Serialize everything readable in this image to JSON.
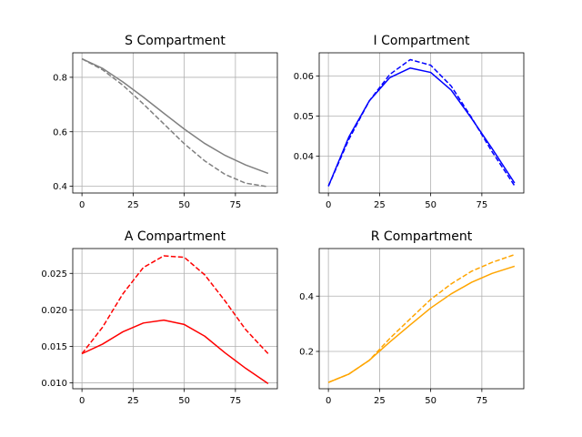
{
  "chart_data": [
    {
      "type": "line",
      "title": "S Compartment",
      "xlim": [
        -4.5,
        95.5
      ],
      "ylim": [
        0.375,
        0.89
      ],
      "xticks": [
        0,
        25,
        50,
        75
      ],
      "yticks": [
        0.4,
        0.6,
        0.8
      ],
      "ytick_labels": [
        "0.4",
        "0.6",
        "0.8"
      ],
      "grid": true,
      "series": [
        {
          "style": "solid",
          "color": "#808080",
          "x": [
            0,
            10,
            20,
            30,
            40,
            50,
            60,
            70,
            80,
            91
          ],
          "y": [
            0.868,
            0.833,
            0.783,
            0.727,
            0.668,
            0.61,
            0.557,
            0.513,
            0.478,
            0.447
          ]
        },
        {
          "style": "dashed",
          "color": "#808080",
          "x": [
            0,
            10,
            20,
            30,
            40,
            50,
            60,
            70,
            80,
            91
          ],
          "y": [
            0.868,
            0.828,
            0.771,
            0.702,
            0.629,
            0.556,
            0.493,
            0.443,
            0.411,
            0.398
          ]
        }
      ]
    },
    {
      "type": "line",
      "title": "I Compartment",
      "xlim": [
        -4.5,
        95.5
      ],
      "ylim": [
        0.0308,
        0.0658
      ],
      "xticks": [
        0,
        25,
        50,
        75
      ],
      "yticks": [
        0.04,
        0.05,
        0.06
      ],
      "ytick_labels": [
        "0.04",
        "0.05",
        "0.06"
      ],
      "grid": true,
      "series": [
        {
          "style": "solid",
          "color": "#0000ff",
          "x": [
            0,
            10,
            20,
            30,
            40,
            50,
            60,
            70,
            80,
            91
          ],
          "y": [
            0.0325,
            0.0448,
            0.0538,
            0.0596,
            0.062,
            0.0609,
            0.0565,
            0.0494,
            0.0419,
            0.0333
          ]
        },
        {
          "style": "dashed",
          "color": "#0000ff",
          "x": [
            0,
            10,
            20,
            30,
            40,
            50,
            60,
            70,
            80,
            91
          ],
          "y": [
            0.0325,
            0.0442,
            0.0538,
            0.0604,
            0.0641,
            0.0627,
            0.0575,
            0.0496,
            0.0411,
            0.0326
          ]
        }
      ]
    },
    {
      "type": "line",
      "title": "A Compartment",
      "xlim": [
        -4.5,
        95.5
      ],
      "ylim": [
        0.0092,
        0.0284
      ],
      "xticks": [
        0,
        25,
        50,
        75
      ],
      "yticks": [
        0.01,
        0.015,
        0.02,
        0.025
      ],
      "ytick_labels": [
        "0.010",
        "0.015",
        "0.020",
        "0.025"
      ],
      "grid": true,
      "series": [
        {
          "style": "solid",
          "color": "#ff0000",
          "x": [
            0,
            10,
            20,
            30,
            40,
            50,
            60,
            70,
            80,
            91
          ],
          "y": [
            0.014,
            0.0153,
            0.017,
            0.0182,
            0.0186,
            0.018,
            0.0164,
            0.0141,
            0.012,
            0.0099
          ]
        },
        {
          "style": "dashed",
          "color": "#ff0000",
          "x": [
            0,
            10,
            20,
            30,
            40,
            50,
            60,
            70,
            80,
            91
          ],
          "y": [
            0.014,
            0.0176,
            0.0222,
            0.0258,
            0.0274,
            0.0272,
            0.0248,
            0.0212,
            0.0173,
            0.014
          ]
        }
      ]
    },
    {
      "type": "line",
      "title": "R Compartment",
      "xlim": [
        -4.5,
        95.5
      ],
      "ylim": [
        0.065,
        0.572
      ],
      "xticks": [
        0,
        25,
        50,
        75
      ],
      "yticks": [
        0.2,
        0.4
      ],
      "ytick_labels": [
        "0.2",
        "0.4"
      ],
      "grid": true,
      "series": [
        {
          "style": "solid",
          "color": "#ffa500",
          "x": [
            0,
            10,
            20,
            30,
            40,
            50,
            60,
            70,
            80,
            91
          ],
          "y": [
            0.088,
            0.118,
            0.168,
            0.234,
            0.296,
            0.357,
            0.408,
            0.45,
            0.482,
            0.508
          ]
        },
        {
          "style": "dashed",
          "color": "#ffa500",
          "x": [
            0,
            10,
            20,
            30,
            40,
            50,
            60,
            70,
            80,
            91
          ],
          "y": [
            0.088,
            0.118,
            0.168,
            0.247,
            0.318,
            0.388,
            0.444,
            0.49,
            0.522,
            0.55
          ]
        }
      ]
    }
  ]
}
